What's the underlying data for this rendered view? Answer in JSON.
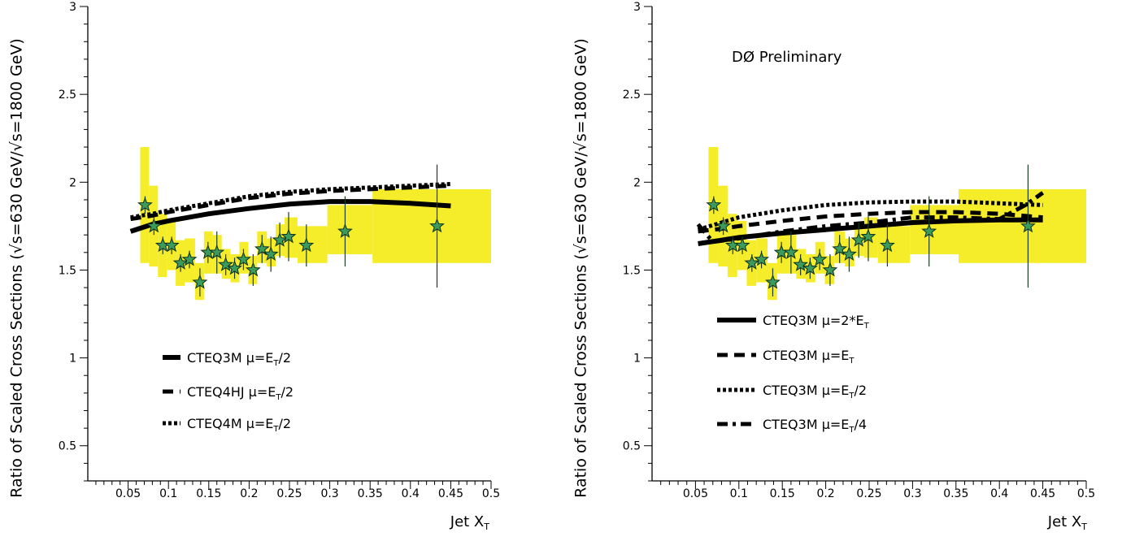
{
  "ylabel": "Ratio of Scaled Cross Sections (√s=630 GeV/√s=1800 GeV)",
  "xlabel_main": "Jet X",
  "xlabel_sub": "T",
  "annotation": "DØ Preliminary",
  "chart_data": [
    {
      "type": "line",
      "xlim": [
        0,
        0.5
      ],
      "ylim": [
        0.3,
        3
      ],
      "xticks": [
        "0.05",
        "0.1",
        "0.15",
        "0.2",
        "0.25",
        "0.3",
        "0.35",
        "0.4",
        "0.45",
        "0.5"
      ],
      "yticks": [
        "0.5",
        "1",
        "1.5",
        "2",
        "2.5",
        "3"
      ],
      "data_points": {
        "x": [
          0.071,
          0.082,
          0.093,
          0.104,
          0.115,
          0.126,
          0.139,
          0.149,
          0.16,
          0.171,
          0.182,
          0.193,
          0.205,
          0.216,
          0.227,
          0.238,
          0.249,
          0.271,
          0.319,
          0.433
        ],
        "y": [
          1.87,
          1.75,
          1.64,
          1.64,
          1.54,
          1.56,
          1.43,
          1.6,
          1.6,
          1.53,
          1.51,
          1.56,
          1.5,
          1.62,
          1.59,
          1.67,
          1.69,
          1.64,
          1.72,
          1.75
        ],
        "yerr": [
          0.05,
          0.05,
          0.05,
          0.05,
          0.05,
          0.05,
          0.08,
          0.06,
          0.12,
          0.06,
          0.06,
          0.06,
          0.09,
          0.08,
          0.1,
          0.1,
          0.14,
          0.12,
          0.2,
          0.35
        ]
      },
      "syst_band": [
        {
          "x0": 0.065,
          "x1": 0.076,
          "lo": 1.54,
          "hi": 2.2
        },
        {
          "x0": 0.076,
          "x1": 0.087,
          "lo": 1.52,
          "hi": 1.98
        },
        {
          "x0": 0.087,
          "x1": 0.098,
          "lo": 1.46,
          "hi": 1.82
        },
        {
          "x0": 0.098,
          "x1": 0.109,
          "lo": 1.5,
          "hi": 1.78
        },
        {
          "x0": 0.109,
          "x1": 0.12,
          "lo": 1.41,
          "hi": 1.67
        },
        {
          "x0": 0.12,
          "x1": 0.133,
          "lo": 1.43,
          "hi": 1.68
        },
        {
          "x0": 0.133,
          "x1": 0.144,
          "lo": 1.33,
          "hi": 1.54
        },
        {
          "x0": 0.144,
          "x1": 0.155,
          "lo": 1.48,
          "hi": 1.72
        },
        {
          "x0": 0.155,
          "x1": 0.166,
          "lo": 1.48,
          "hi": 1.7
        },
        {
          "x0": 0.166,
          "x1": 0.177,
          "lo": 1.45,
          "hi": 1.62
        },
        {
          "x0": 0.177,
          "x1": 0.188,
          "lo": 1.43,
          "hi": 1.59
        },
        {
          "x0": 0.188,
          "x1": 0.199,
          "lo": 1.48,
          "hi": 1.66
        },
        {
          "x0": 0.199,
          "x1": 0.21,
          "lo": 1.42,
          "hi": 1.58
        },
        {
          "x0": 0.21,
          "x1": 0.222,
          "lo": 1.54,
          "hi": 1.72
        },
        {
          "x0": 0.222,
          "x1": 0.233,
          "lo": 1.52,
          "hi": 1.68
        },
        {
          "x0": 0.233,
          "x1": 0.244,
          "lo": 1.58,
          "hi": 1.76
        },
        {
          "x0": 0.244,
          "x1": 0.26,
          "lo": 1.57,
          "hi": 1.8
        },
        {
          "x0": 0.26,
          "x1": 0.297,
          "lo": 1.54,
          "hi": 1.75
        },
        {
          "x0": 0.297,
          "x1": 0.353,
          "lo": 1.59,
          "hi": 1.87
        },
        {
          "x0": 0.353,
          "x1": 0.5,
          "lo": 1.54,
          "hi": 1.96
        }
      ],
      "series": [
        {
          "name": "CTEQ3M μ=E_T/2",
          "legend_main": "CTEQ3M μ=E",
          "legend_sub": "T",
          "legend_tail": "/2",
          "dash": "solid",
          "x": [
            0.053,
            0.08,
            0.1,
            0.15,
            0.2,
            0.25,
            0.3,
            0.35,
            0.4,
            0.45
          ],
          "values": [
            1.72,
            1.76,
            1.78,
            1.82,
            1.85,
            1.875,
            1.89,
            1.89,
            1.88,
            1.865
          ]
        },
        {
          "name": "CTEQ4HJ μ=E_T/2",
          "legend_main": "CTEQ4HJ μ=E",
          "legend_sub": "T",
          "legend_tail": "/2",
          "dash": "dashed",
          "x": [
            0.053,
            0.08,
            0.1,
            0.15,
            0.2,
            0.25,
            0.3,
            0.35,
            0.4,
            0.45
          ],
          "values": [
            1.79,
            1.81,
            1.83,
            1.87,
            1.91,
            1.935,
            1.95,
            1.96,
            1.97,
            1.98
          ]
        },
        {
          "name": "CTEQ4M μ=E_T/2",
          "legend_main": "CTEQ4M μ=E",
          "legend_sub": "T",
          "legend_tail": "/2",
          "dash": "dotted",
          "x": [
            0.053,
            0.08,
            0.1,
            0.15,
            0.2,
            0.25,
            0.3,
            0.35,
            0.4,
            0.45
          ],
          "values": [
            1.8,
            1.82,
            1.84,
            1.88,
            1.92,
            1.945,
            1.96,
            1.97,
            1.98,
            1.99
          ]
        }
      ]
    },
    {
      "type": "line",
      "xlim": [
        0,
        0.5
      ],
      "ylim": [
        0.3,
        3
      ],
      "xticks": [
        "0.05",
        "0.1",
        "0.15",
        "0.2",
        "0.25",
        "0.3",
        "0.35",
        "0.4",
        "0.45",
        "0.5"
      ],
      "yticks": [
        "0.5",
        "1",
        "1.5",
        "2",
        "2.5",
        "3"
      ],
      "data_points": {
        "x": [
          0.071,
          0.082,
          0.093,
          0.104,
          0.115,
          0.126,
          0.139,
          0.149,
          0.16,
          0.171,
          0.182,
          0.193,
          0.205,
          0.216,
          0.227,
          0.238,
          0.249,
          0.271,
          0.319,
          0.433
        ],
        "y": [
          1.87,
          1.75,
          1.64,
          1.64,
          1.54,
          1.56,
          1.43,
          1.6,
          1.6,
          1.53,
          1.51,
          1.56,
          1.5,
          1.62,
          1.59,
          1.67,
          1.69,
          1.64,
          1.72,
          1.75
        ],
        "yerr": [
          0.05,
          0.05,
          0.05,
          0.05,
          0.05,
          0.05,
          0.08,
          0.06,
          0.12,
          0.06,
          0.06,
          0.06,
          0.09,
          0.08,
          0.1,
          0.1,
          0.14,
          0.12,
          0.2,
          0.35
        ]
      },
      "syst_band": [
        {
          "x0": 0.065,
          "x1": 0.076,
          "lo": 1.54,
          "hi": 2.2
        },
        {
          "x0": 0.076,
          "x1": 0.087,
          "lo": 1.52,
          "hi": 1.98
        },
        {
          "x0": 0.087,
          "x1": 0.098,
          "lo": 1.46,
          "hi": 1.82
        },
        {
          "x0": 0.098,
          "x1": 0.109,
          "lo": 1.5,
          "hi": 1.78
        },
        {
          "x0": 0.109,
          "x1": 0.12,
          "lo": 1.41,
          "hi": 1.67
        },
        {
          "x0": 0.12,
          "x1": 0.133,
          "lo": 1.43,
          "hi": 1.68
        },
        {
          "x0": 0.133,
          "x1": 0.144,
          "lo": 1.33,
          "hi": 1.54
        },
        {
          "x0": 0.144,
          "x1": 0.155,
          "lo": 1.48,
          "hi": 1.72
        },
        {
          "x0": 0.155,
          "x1": 0.166,
          "lo": 1.48,
          "hi": 1.7
        },
        {
          "x0": 0.166,
          "x1": 0.177,
          "lo": 1.45,
          "hi": 1.62
        },
        {
          "x0": 0.177,
          "x1": 0.188,
          "lo": 1.43,
          "hi": 1.59
        },
        {
          "x0": 0.188,
          "x1": 0.199,
          "lo": 1.48,
          "hi": 1.66
        },
        {
          "x0": 0.199,
          "x1": 0.21,
          "lo": 1.42,
          "hi": 1.58
        },
        {
          "x0": 0.21,
          "x1": 0.222,
          "lo": 1.54,
          "hi": 1.72
        },
        {
          "x0": 0.222,
          "x1": 0.233,
          "lo": 1.52,
          "hi": 1.68
        },
        {
          "x0": 0.233,
          "x1": 0.244,
          "lo": 1.58,
          "hi": 1.76
        },
        {
          "x0": 0.244,
          "x1": 0.26,
          "lo": 1.57,
          "hi": 1.8
        },
        {
          "x0": 0.26,
          "x1": 0.297,
          "lo": 1.54,
          "hi": 1.75
        },
        {
          "x0": 0.297,
          "x1": 0.353,
          "lo": 1.59,
          "hi": 1.87
        },
        {
          "x0": 0.353,
          "x1": 0.5,
          "lo": 1.54,
          "hi": 1.96
        }
      ],
      "series": [
        {
          "name": "CTEQ3M μ=2*E_T",
          "legend_main": "CTEQ3M μ=2*E",
          "legend_sub": "T",
          "legend_tail": "",
          "dash": "solid",
          "x": [
            0.053,
            0.08,
            0.1,
            0.15,
            0.2,
            0.25,
            0.3,
            0.35,
            0.4,
            0.45
          ],
          "values": [
            1.65,
            1.67,
            1.685,
            1.71,
            1.73,
            1.75,
            1.77,
            1.78,
            1.785,
            1.785
          ]
        },
        {
          "name": "CTEQ3M μ=E_T",
          "legend_main": "CTEQ3M μ=E",
          "legend_sub": "T",
          "legend_tail": "",
          "dash": "dashed",
          "x": [
            0.053,
            0.08,
            0.1,
            0.15,
            0.2,
            0.25,
            0.3,
            0.35,
            0.4,
            0.45
          ],
          "values": [
            1.72,
            1.735,
            1.75,
            1.78,
            1.805,
            1.82,
            1.83,
            1.83,
            1.82,
            1.8
          ]
        },
        {
          "name": "CTEQ3M μ=E_T/2",
          "legend_main": "CTEQ3M μ=E",
          "legend_sub": "T",
          "legend_tail": "/2",
          "dash": "dotted",
          "x": [
            0.053,
            0.08,
            0.1,
            0.15,
            0.2,
            0.25,
            0.3,
            0.35,
            0.4,
            0.45
          ],
          "values": [
            1.73,
            1.77,
            1.8,
            1.84,
            1.87,
            1.885,
            1.89,
            1.89,
            1.88,
            1.87
          ]
        },
        {
          "name": "CTEQ3M μ=E_T/4",
          "legend_main": "CTEQ3M μ=E",
          "legend_sub": "T",
          "legend_tail": "/4",
          "dash": "dashdot",
          "x": [
            0.053,
            0.07,
            0.1,
            0.15,
            0.2,
            0.25,
            0.3,
            0.35,
            0.4,
            0.43,
            0.45
          ],
          "values": [
            1.76,
            1.66,
            1.68,
            1.72,
            1.75,
            1.77,
            1.8,
            1.8,
            1.79,
            1.87,
            1.94
          ]
        }
      ]
    }
  ]
}
